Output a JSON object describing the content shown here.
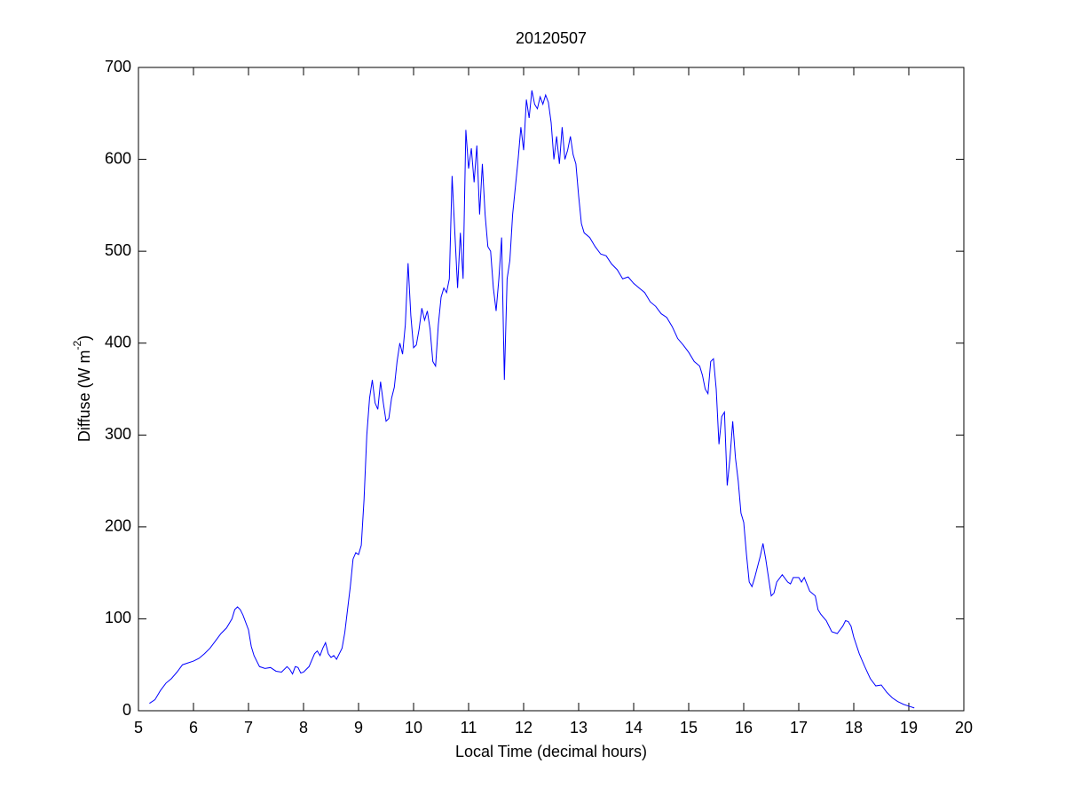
{
  "chart_data": {
    "type": "line",
    "title": "20120507",
    "xlabel": "Local Time (decimal hours)",
    "ylabel": [
      "Diffuse (W m",
      "-2",
      ")"
    ],
    "xlim": [
      5,
      20
    ],
    "xticks": [
      5,
      6,
      7,
      8,
      9,
      10,
      11,
      12,
      13,
      14,
      15,
      16,
      17,
      18,
      19,
      20
    ],
    "ylim": [
      0,
      700
    ],
    "yticks": [
      0,
      100,
      200,
      300,
      400,
      500,
      600,
      700
    ],
    "grid": false,
    "series": [
      {
        "color": "#0000ff",
        "x": [
          5.2,
          5.3,
          5.4,
          5.5,
          5.6,
          5.7,
          5.8,
          5.9,
          6.0,
          6.1,
          6.2,
          6.3,
          6.4,
          6.5,
          6.6,
          6.7,
          6.75,
          6.8,
          6.85,
          6.9,
          7.0,
          7.05,
          7.1,
          7.2,
          7.3,
          7.4,
          7.5,
          7.6,
          7.7,
          7.75,
          7.8,
          7.85,
          7.9,
          7.95,
          8.0,
          8.1,
          8.2,
          8.25,
          8.3,
          8.35,
          8.4,
          8.45,
          8.5,
          8.55,
          8.6,
          8.7,
          8.75,
          8.8,
          8.85,
          8.9,
          8.95,
          9.0,
          9.05,
          9.1,
          9.15,
          9.2,
          9.25,
          9.3,
          9.35,
          9.4,
          9.45,
          9.5,
          9.55,
          9.6,
          9.65,
          9.7,
          9.75,
          9.8,
          9.85,
          9.9,
          9.95,
          10.0,
          10.05,
          10.1,
          10.15,
          10.2,
          10.25,
          10.3,
          10.35,
          10.4,
          10.45,
          10.5,
          10.55,
          10.6,
          10.65,
          10.7,
          10.75,
          10.8,
          10.85,
          10.9,
          10.95,
          11.0,
          11.05,
          11.1,
          11.15,
          11.2,
          11.25,
          11.3,
          11.35,
          11.4,
          11.45,
          11.5,
          11.55,
          11.6,
          11.65,
          11.7,
          11.75,
          11.8,
          11.85,
          11.9,
          11.95,
          12.0,
          12.05,
          12.1,
          12.15,
          12.2,
          12.25,
          12.3,
          12.35,
          12.4,
          12.45,
          12.5,
          12.55,
          12.6,
          12.65,
          12.7,
          12.75,
          12.8,
          12.85,
          12.9,
          12.95,
          13.0,
          13.05,
          13.1,
          13.2,
          13.3,
          13.4,
          13.5,
          13.6,
          13.7,
          13.8,
          13.9,
          14.0,
          14.1,
          14.2,
          14.3,
          14.4,
          14.5,
          14.6,
          14.7,
          14.8,
          14.9,
          15.0,
          15.1,
          15.2,
          15.25,
          15.3,
          15.35,
          15.4,
          15.45,
          15.5,
          15.55,
          15.6,
          15.65,
          15.7,
          15.75,
          15.8,
          15.85,
          15.9,
          15.95,
          16.0,
          16.05,
          16.1,
          16.15,
          16.2,
          16.3,
          16.35,
          16.4,
          16.5,
          16.55,
          16.6,
          16.7,
          16.8,
          16.85,
          16.9,
          17.0,
          17.05,
          17.1,
          17.2,
          17.3,
          17.35,
          17.4,
          17.5,
          17.6,
          17.7,
          17.8,
          17.85,
          17.9,
          17.95,
          18.0,
          18.1,
          18.2,
          18.3,
          18.4,
          18.5,
          18.6,
          18.7,
          18.8,
          18.9,
          19.0,
          19.1
        ],
        "values": [
          8,
          12,
          22,
          30,
          35,
          42,
          50,
          52,
          54,
          57,
          62,
          68,
          76,
          84,
          90,
          100,
          110,
          113,
          110,
          104,
          88,
          70,
          60,
          48,
          46,
          47,
          43,
          42,
          48,
          45,
          40,
          48,
          47,
          41,
          42,
          48,
          62,
          65,
          60,
          68,
          74,
          62,
          58,
          60,
          56,
          68,
          85,
          110,
          135,
          165,
          172,
          170,
          180,
          230,
          300,
          340,
          360,
          335,
          328,
          358,
          335,
          315,
          318,
          340,
          352,
          380,
          400,
          388,
          420,
          487,
          430,
          395,
          398,
          415,
          438,
          425,
          435,
          415,
          380,
          375,
          420,
          450,
          460,
          455,
          470,
          582,
          520,
          460,
          520,
          470,
          632,
          590,
          612,
          575,
          615,
          540,
          595,
          540,
          505,
          500,
          460,
          435,
          470,
          515,
          360,
          470,
          490,
          540,
          570,
          600,
          635,
          610,
          665,
          645,
          675,
          660,
          655,
          668,
          660,
          670,
          662,
          640,
          600,
          625,
          595,
          635,
          600,
          610,
          625,
          605,
          595,
          560,
          530,
          520,
          515,
          505,
          497,
          495,
          486,
          480,
          470,
          472,
          465,
          460,
          455,
          445,
          440,
          432,
          428,
          418,
          405,
          398,
          390,
          380,
          375,
          365,
          350,
          345,
          380,
          383,
          350,
          290,
          320,
          325,
          245,
          275,
          315,
          275,
          250,
          215,
          205,
          170,
          140,
          135,
          145,
          168,
          182,
          165,
          125,
          128,
          140,
          148,
          140,
          138,
          145,
          145,
          140,
          145,
          130,
          125,
          110,
          105,
          98,
          86,
          84,
          92,
          98,
          97,
          92,
          80,
          62,
          48,
          35,
          27,
          28,
          20,
          14,
          10,
          7,
          5,
          3
        ]
      }
    ]
  }
}
